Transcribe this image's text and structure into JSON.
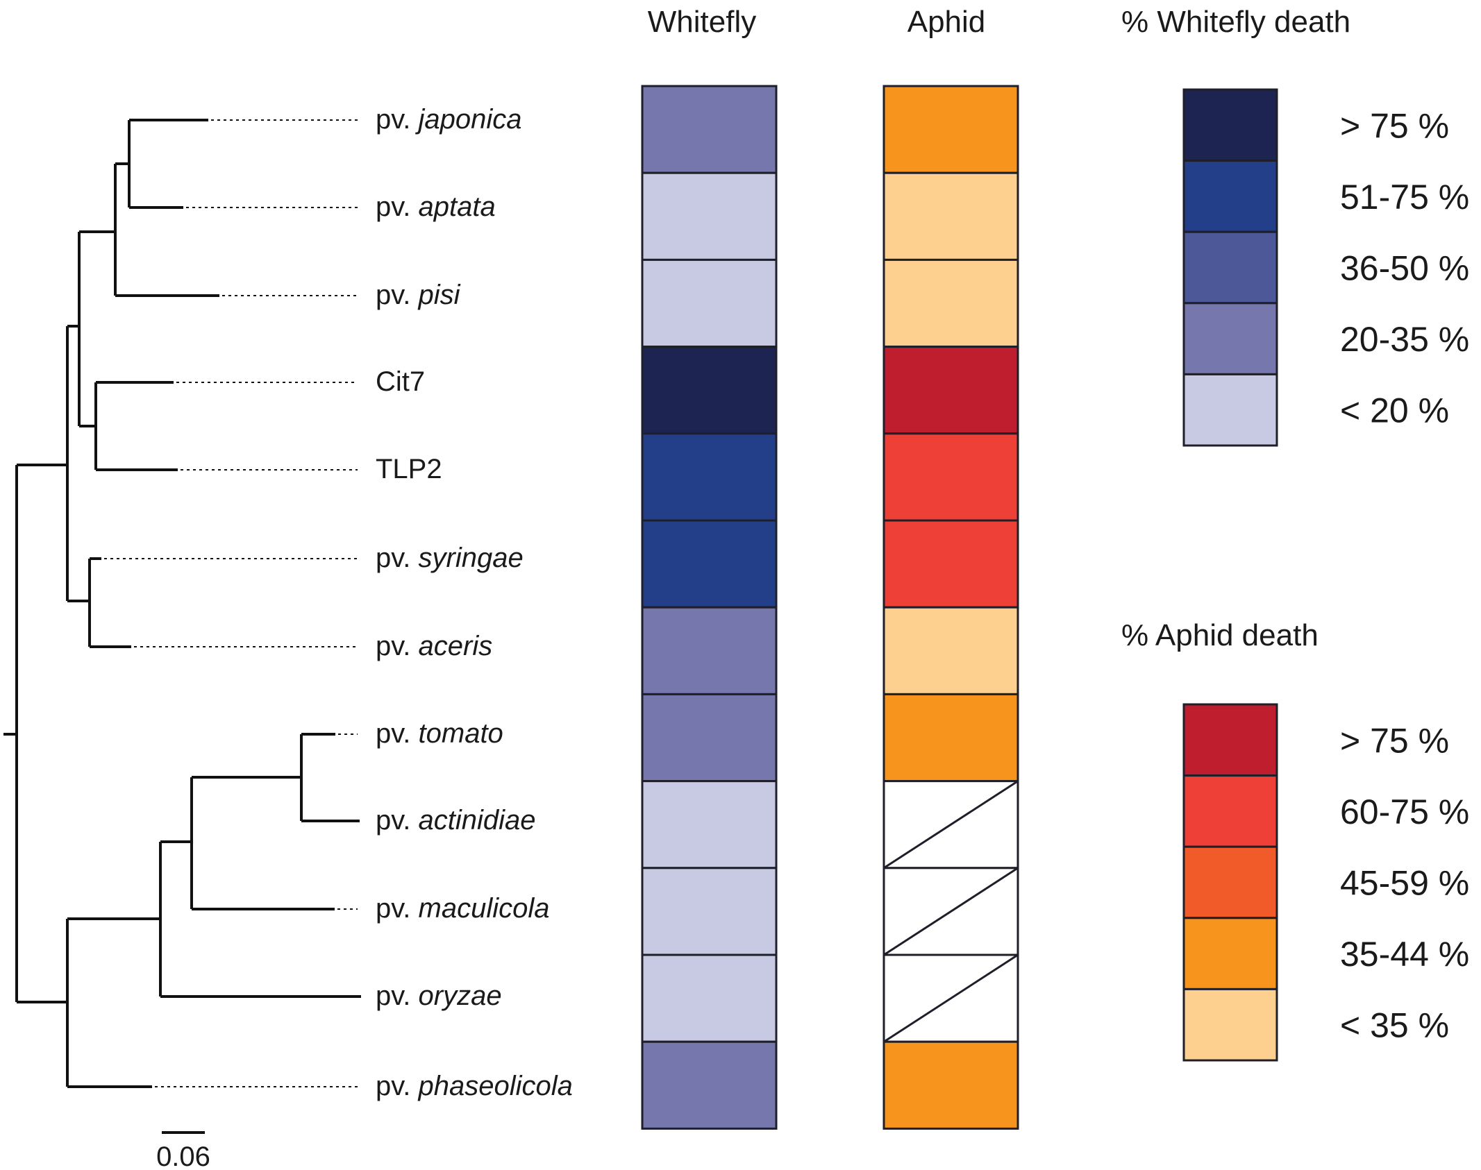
{
  "headers": {
    "whitefly": "Whitefly",
    "aphid": "Aphid",
    "whitefly_legend_title": "% Whitefly death",
    "aphid_legend_title": "% Aphid death"
  },
  "scale_bar_label": "0.06",
  "taxa": [
    {
      "prefix": "pv.",
      "name": "japonica",
      "italic": true,
      "whitefly": "20-35 %",
      "aphid": "35-44 %"
    },
    {
      "prefix": "pv.",
      "name": "aptata",
      "italic": true,
      "whitefly": "< 20 %",
      "aphid": "< 35 %"
    },
    {
      "prefix": "pv.",
      "name": "pisi",
      "italic": true,
      "whitefly": "< 20 %",
      "aphid": "< 35 %"
    },
    {
      "prefix": "",
      "name": "Cit7",
      "italic": false,
      "whitefly": "> 75 %",
      "aphid": "> 75 %"
    },
    {
      "prefix": "",
      "name": "TLP2",
      "italic": false,
      "whitefly": "51-75 %",
      "aphid": "60-75 %"
    },
    {
      "prefix": "pv.",
      "name": "syringae",
      "italic": true,
      "whitefly": "51-75 %",
      "aphid": "60-75 %"
    },
    {
      "prefix": "pv.",
      "name": "aceris",
      "italic": true,
      "whitefly": "20-35 %",
      "aphid": "< 35 %"
    },
    {
      "prefix": "pv.",
      "name": "tomato",
      "italic": true,
      "whitefly": "20-35 %",
      "aphid": "35-44 %"
    },
    {
      "prefix": "pv.",
      "name": "actinidiae",
      "italic": true,
      "whitefly": "< 20 %",
      "aphid": null
    },
    {
      "prefix": "pv.",
      "name": "maculicola",
      "italic": true,
      "whitefly": "< 20 %",
      "aphid": null
    },
    {
      "prefix": "pv.",
      "name": "oryzae",
      "italic": true,
      "whitefly": "< 20 %",
      "aphid": null
    },
    {
      "prefix": "pv.",
      "name": "phaseolicola",
      "italic": true,
      "whitefly": "20-35 %",
      "aphid": "35-44 %"
    }
  ],
  "whitefly_legend": [
    {
      "label": "> 75 %",
      "color": "#1e2452"
    },
    {
      "label": "51-75 %",
      "color": "#233f8a"
    },
    {
      "label": "36-50 %",
      "color": "#4d5899"
    },
    {
      "label": "20-35 %",
      "color": "#7577ad"
    },
    {
      "label": "< 20 %",
      "color": "#c8c9e3"
    }
  ],
  "aphid_legend": [
    {
      "label": "> 75 %",
      "color": "#be1e2d"
    },
    {
      "label": "60-75 %",
      "color": "#ee4036"
    },
    {
      "label": "45-59 %",
      "color": "#f15a29"
    },
    {
      "label": "35-44 %",
      "color": "#f7941e"
    },
    {
      "label": "< 35 %",
      "color": "#fdd08f"
    }
  ],
  "tree": {
    "branch_length_units": [
      [
        "pv. japonica",
        0.094
      ],
      [
        "pv. aptata",
        0.064
      ],
      [
        "pv. pisi",
        0.121
      ],
      [
        "Cit7",
        0.089
      ],
      [
        "TLP2",
        0.094
      ],
      [
        "pv. syringae",
        0.013
      ],
      [
        "pv. aceris",
        0.049
      ],
      [
        "pv. tomato",
        0.04
      ],
      [
        "pv. actinidiae",
        0.062
      ],
      [
        "pv. maculicola",
        0.168
      ],
      [
        "pv. oryzae",
        0.238
      ],
      [
        "pv. phaseolicola",
        0.096
      ]
    ]
  }
}
